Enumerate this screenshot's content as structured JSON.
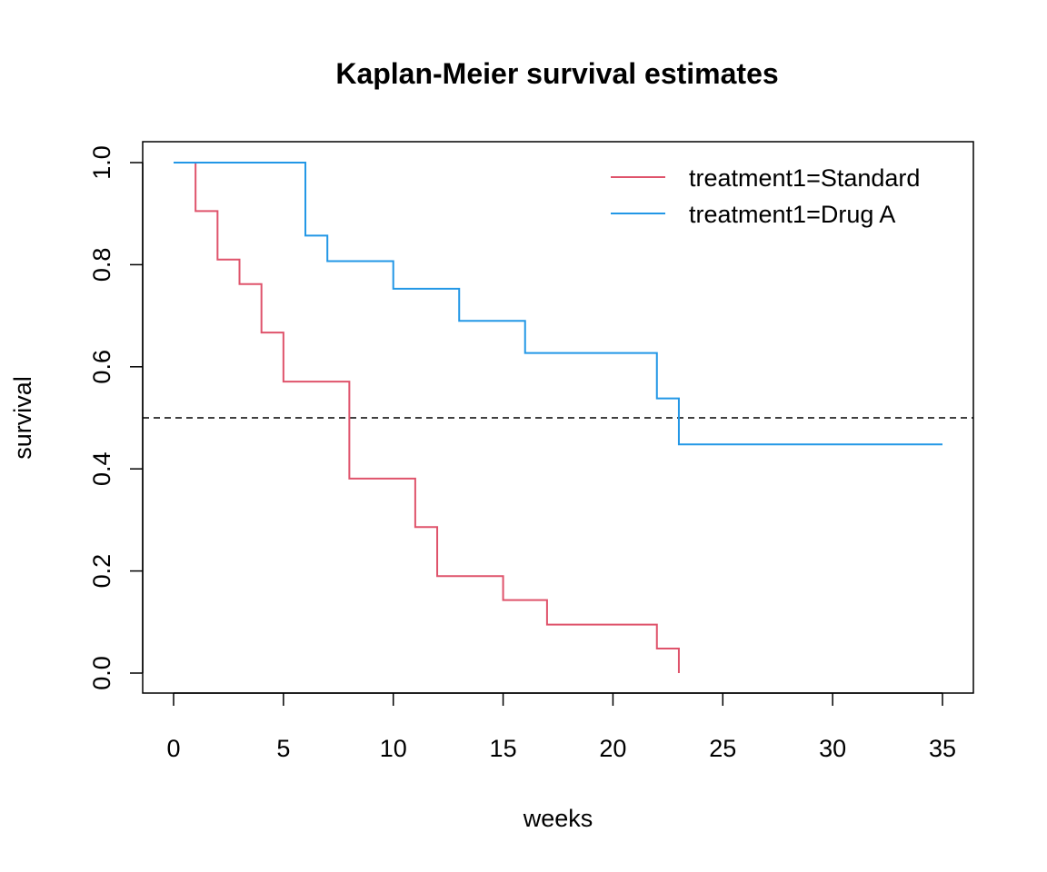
{
  "chart_data": {
    "type": "line",
    "step": true,
    "title": "Kaplan-Meier survival estimates",
    "xlabel": "weeks",
    "ylabel": "survival",
    "xlim": [
      0,
      35
    ],
    "ylim": [
      0,
      1
    ],
    "xticks": [
      0,
      5,
      10,
      15,
      20,
      25,
      30,
      35
    ],
    "yticks": [
      0.0,
      0.2,
      0.4,
      0.6,
      0.8,
      1.0
    ],
    "xtick_labels": [
      "0",
      "5",
      "10",
      "15",
      "20",
      "25",
      "30",
      "35"
    ],
    "ytick_labels": [
      "0.0",
      "0.2",
      "0.4",
      "0.6",
      "0.8",
      "1.0"
    ],
    "grid": false,
    "legend_position": "top-right",
    "reference_line": {
      "y": 0.5,
      "style": "dashed",
      "color": "#000000"
    },
    "series": [
      {
        "name": "treatment1=Standard",
        "color": "#DF536B",
        "x": [
          0,
          1,
          2,
          3,
          4,
          5,
          8,
          11,
          12,
          15,
          17,
          22,
          23
        ],
        "y": [
          1.0,
          0.905,
          0.81,
          0.762,
          0.667,
          0.571,
          0.381,
          0.286,
          0.19,
          0.143,
          0.095,
          0.048,
          0.0
        ]
      },
      {
        "name": "treatment1=Drug A",
        "color": "#2297E6",
        "x": [
          0,
          6,
          7,
          10,
          13,
          16,
          22,
          23,
          35
        ],
        "y": [
          1.0,
          0.857,
          0.807,
          0.753,
          0.69,
          0.627,
          0.538,
          0.448,
          0.448
        ]
      }
    ]
  }
}
